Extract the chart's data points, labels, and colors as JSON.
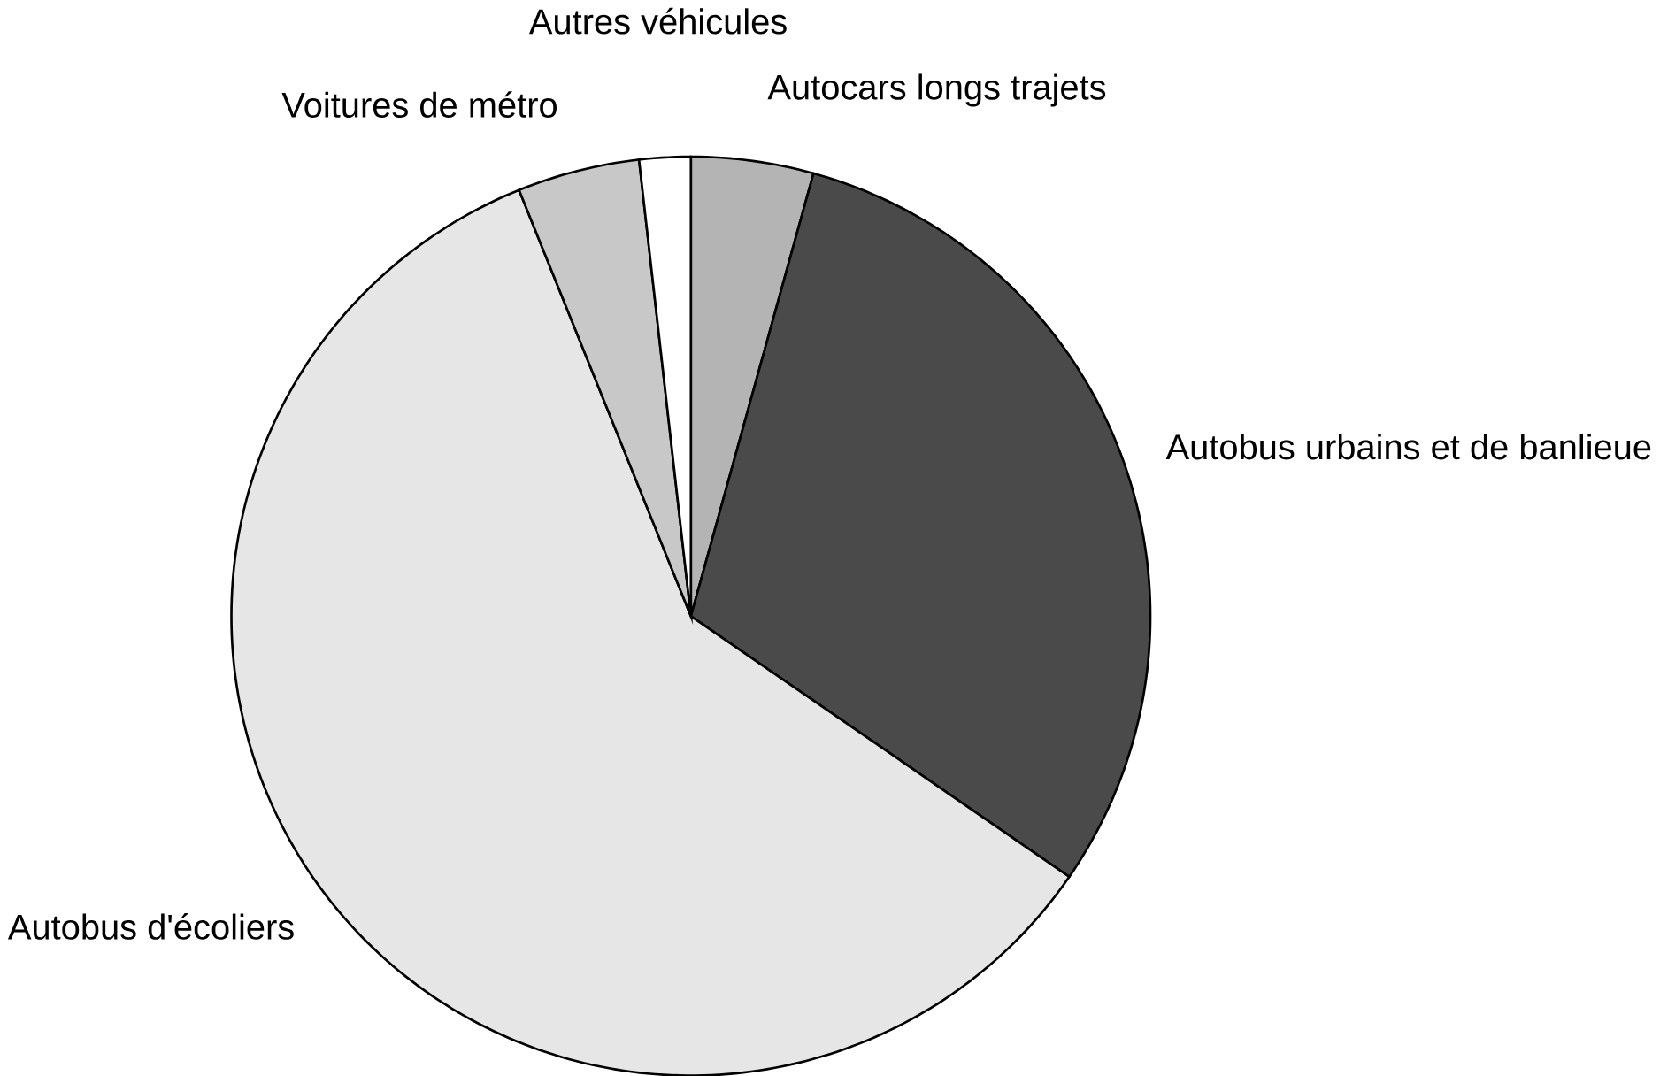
{
  "chart_data": {
    "type": "pie",
    "categories": [
      "Autocars longs trajets",
      "Autobus urbains et de banlieue",
      "Autobus d'écoliers",
      "Voitures de métro",
      "Autres véhicules"
    ],
    "values": [
      4.3,
      30.3,
      59.3,
      4.3,
      1.8
    ],
    "colors": [
      "#b4b4b4",
      "#4a4a4a",
      "#e6e6e6",
      "#c8c8c8",
      "#ffffff"
    ]
  }
}
